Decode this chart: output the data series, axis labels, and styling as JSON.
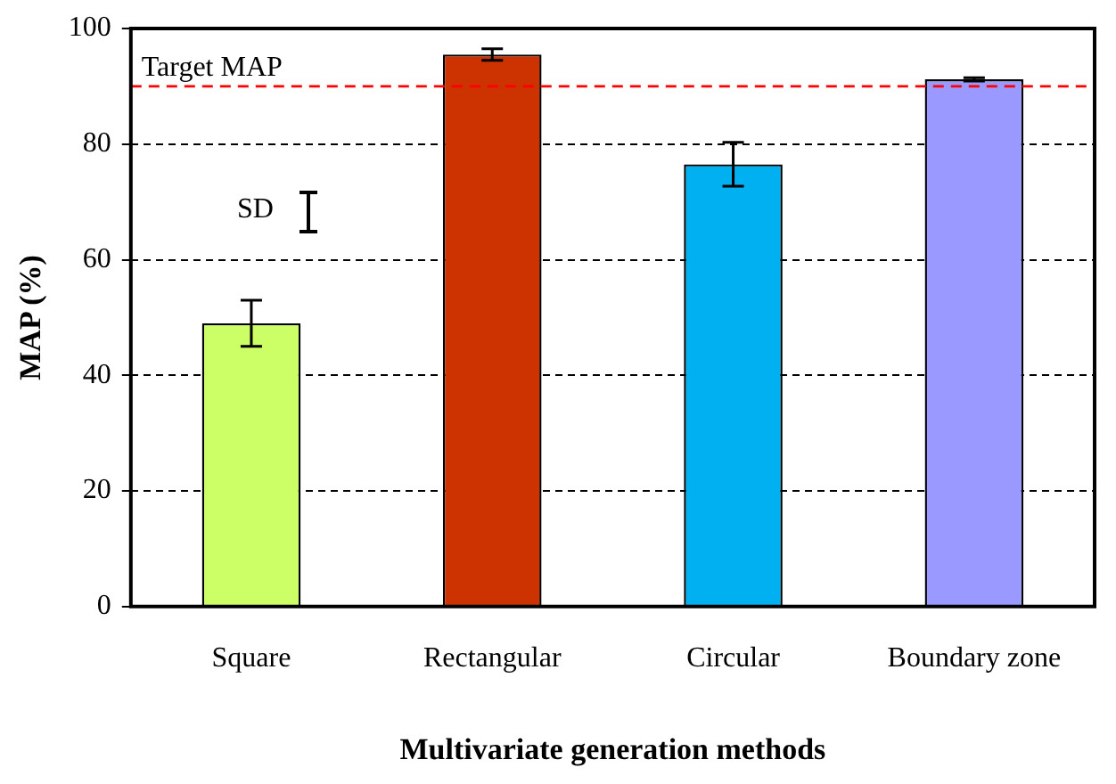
{
  "chart_data": {
    "type": "bar",
    "xlabel": "Multivariate generation methods",
    "ylabel": "MAP (%)",
    "categories": [
      "Square",
      "Rectangular",
      "Circular",
      "Boundary zone"
    ],
    "values": [
      49,
      95.5,
      76.5,
      91.2
    ],
    "colors": [
      "#ccff66",
      "#cc3300",
      "#00b0f0",
      "#9999ff"
    ],
    "errors": [
      4,
      1,
      3.8,
      0.3
    ],
    "ylim": [
      0,
      100
    ],
    "yticks": [
      0,
      20,
      40,
      60,
      80,
      100
    ],
    "grid": "y",
    "legend": false,
    "ref_lines": [
      {
        "axis": "y",
        "value": 90,
        "label": "Target MAP",
        "color": "#ff0000",
        "line_style": "dashed"
      }
    ],
    "annotations": [
      "SD"
    ]
  }
}
